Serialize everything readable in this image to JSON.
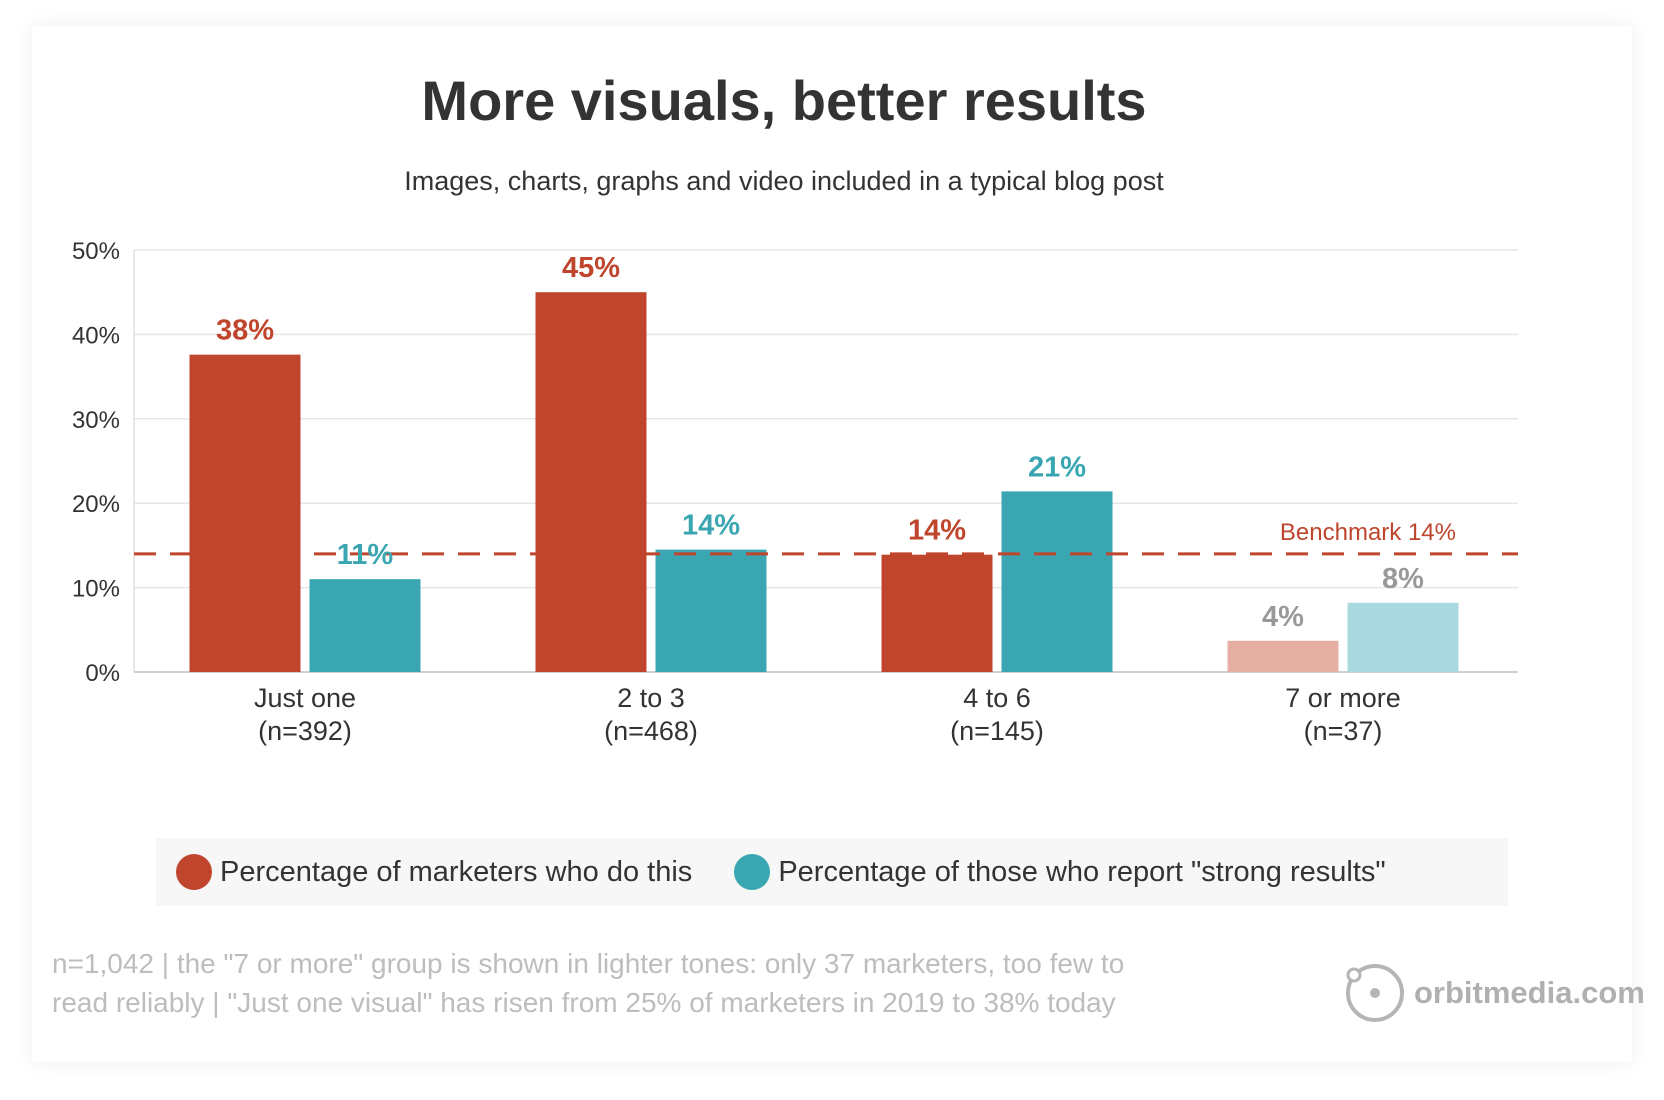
{
  "title": "More visuals, better results",
  "subtitle": "Images, charts, graphs and video included in a typical blog post",
  "benchmark_label": "Benchmark 14%",
  "legend": [
    {
      "label": "Percentage of marketers who do this",
      "color": "#bf452d"
    },
    {
      "label": "Percentage of those who report \"strong results\"",
      "color": "#3aa6b2"
    }
  ],
  "footnote": {
    "line1": "n=1,042 | the \"7 or more\" group is shown in lighter tones: only 37 marketers, too few to",
    "line2": "read reliably | \"Just one visual\" has risen from 25% of marketers in 2019 to 38% today"
  },
  "logo": {
    "text": "orbitmedia.com",
    "icon": "orbit-circle-icon"
  },
  "chart_data": {
    "type": "bar",
    "title": "More visuals, better results",
    "subtitle": "Images, charts, graphs and video included in a typical blog post",
    "categories": [
      {
        "label": "Just one",
        "n": "(n=392)"
      },
      {
        "label": "2 to 3",
        "n": "(n=468)"
      },
      {
        "label": "4 to 6",
        "n": "(n=145)"
      },
      {
        "label": "7 or more",
        "n": "(n=37)"
      }
    ],
    "series": [
      {
        "name": "Percentage of marketers who do this",
        "color": "#bf452d",
        "light_color": "#e6afa4",
        "values": [
          37.6,
          45,
          13.9,
          3.7
        ],
        "labels": [
          "38%",
          "45%",
          "14%",
          "4%"
        ]
      },
      {
        "name": "Percentage of those who report \"strong results\"",
        "color": "#3aa6b2",
        "light_color": "#a9d8de",
        "values": [
          11,
          14.5,
          21.4,
          8.2
        ],
        "labels": [
          "11%",
          "14%",
          "21%",
          "8%"
        ]
      }
    ],
    "light_categories": [
      3
    ],
    "light_label_color": "#999999",
    "benchmark": {
      "value": 14,
      "label": "Benchmark 14%",
      "color": "#bf452d"
    },
    "yticks": [
      "0%",
      "10%",
      "20%",
      "30%",
      "40%",
      "50%"
    ],
    "ytick_values": [
      0,
      10,
      20,
      30,
      40,
      50
    ],
    "ylim": [
      0,
      50
    ],
    "grid": true,
    "legend_position": "bottom"
  }
}
